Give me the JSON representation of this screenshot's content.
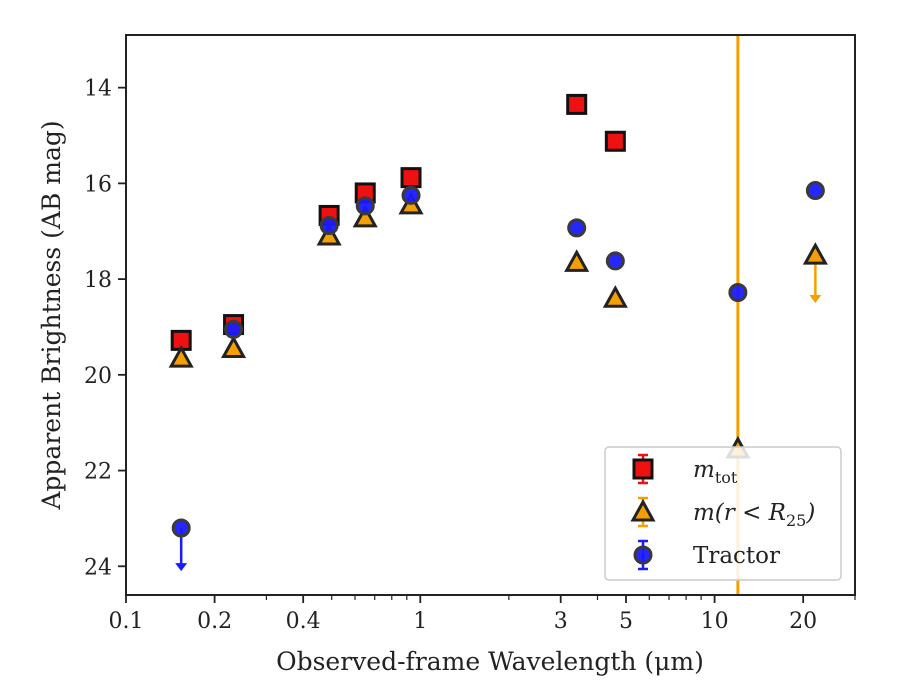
{
  "chart_data": {
    "type": "scatter",
    "xlabel": "Observed-frame Wavelength (μm)",
    "ylabel": "Apparent Brightness (AB mag)",
    "xscale": "log",
    "yinverted": true,
    "xlim": [
      0.1,
      30
    ],
    "ylim": [
      24.6,
      12.9
    ],
    "xticks": [
      0.1,
      0.2,
      0.4,
      1,
      3,
      5,
      10,
      20
    ],
    "xtick_labels": [
      "0.1",
      "0.2",
      "0.4",
      "1",
      "3",
      "5",
      "10",
      "20"
    ],
    "yticks": [
      14,
      16,
      18,
      20,
      22,
      24
    ],
    "ytick_labels": [
      "14",
      "16",
      "18",
      "20",
      "22",
      "24"
    ],
    "grid": false,
    "legend_position": "lower-right",
    "series": [
      {
        "name": "m_tot",
        "marker": "square",
        "color": "#ee1111",
        "points": [
          [
            0.154,
            19.28
          ],
          [
            0.232,
            18.95
          ],
          [
            0.49,
            16.67
          ],
          [
            0.65,
            16.2
          ],
          [
            0.93,
            15.88
          ],
          [
            3.4,
            14.35
          ],
          [
            4.6,
            15.12
          ]
        ]
      },
      {
        "name": "m(r < R25)",
        "marker": "triangle",
        "color": "#f5a000",
        "points": [
          [
            0.154,
            19.65
          ],
          [
            0.232,
            19.45
          ],
          [
            0.49,
            17.1
          ],
          [
            0.65,
            16.72
          ],
          [
            0.93,
            16.45
          ],
          [
            3.4,
            17.65
          ],
          [
            4.6,
            18.4
          ],
          [
            12.0,
            21.55
          ],
          [
            22.0,
            17.5
          ]
        ]
      },
      {
        "name": "Tractor",
        "marker": "circle",
        "color": "#1a1aff",
        "points": [
          [
            0.154,
            23.2
          ],
          [
            0.232,
            19.05
          ],
          [
            0.49,
            16.88
          ],
          [
            0.65,
            16.47
          ],
          [
            0.93,
            16.25
          ],
          [
            3.4,
            16.93
          ],
          [
            4.6,
            17.62
          ],
          [
            12.0,
            18.28
          ],
          [
            22.0,
            16.15
          ]
        ]
      }
    ],
    "upper_limits": [
      {
        "series": "Tractor",
        "x": 0.154,
        "y_from": 23.2,
        "y_to": 24.1,
        "color": "#1a1aff"
      },
      {
        "series": "m(r < R25)",
        "x": 22.0,
        "y_from": 17.5,
        "y_to": 18.5,
        "color": "#f5a000"
      }
    ],
    "vertical_lines": [
      {
        "x": 12.0,
        "color": "#f5a000"
      }
    ],
    "legend": [
      {
        "label": "m",
        "sub": "tot",
        "marker": "square",
        "color": "#ee1111",
        "errcolor": "#ee1111"
      },
      {
        "label": "m(r < R",
        "sub": "25",
        "suffix": ")",
        "marker": "triangle",
        "color": "#f5a000",
        "errcolor": "#f5a000"
      },
      {
        "label": "Tractor",
        "sub": "",
        "marker": "circle",
        "color": "#1a1aff",
        "errcolor": "#1a1aff"
      }
    ]
  }
}
